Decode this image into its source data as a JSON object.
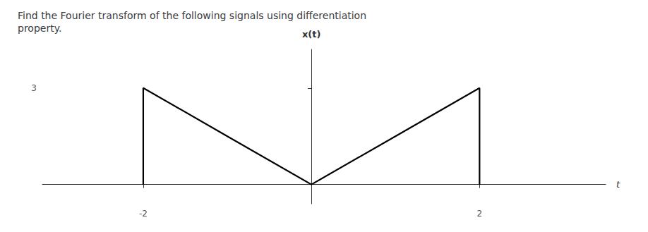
{
  "chart_data": {
    "type": "line",
    "title": "Find the Fourier transform of the following signals using differentiation\nproperty.",
    "xlabel": "t",
    "ylabel": "x(t)",
    "x": [
      -2,
      -2,
      -1,
      0,
      1,
      2,
      2
    ],
    "values": [
      0,
      3,
      1.5,
      0,
      1.5,
      3,
      0
    ],
    "color": "#000000",
    "xlim": [
      -3.2,
      3.5
    ],
    "xticks": [
      -2,
      2
    ],
    "ylim": [
      -0.6,
      4.2
    ],
    "yticks": [
      3
    ],
    "grid": false
  }
}
